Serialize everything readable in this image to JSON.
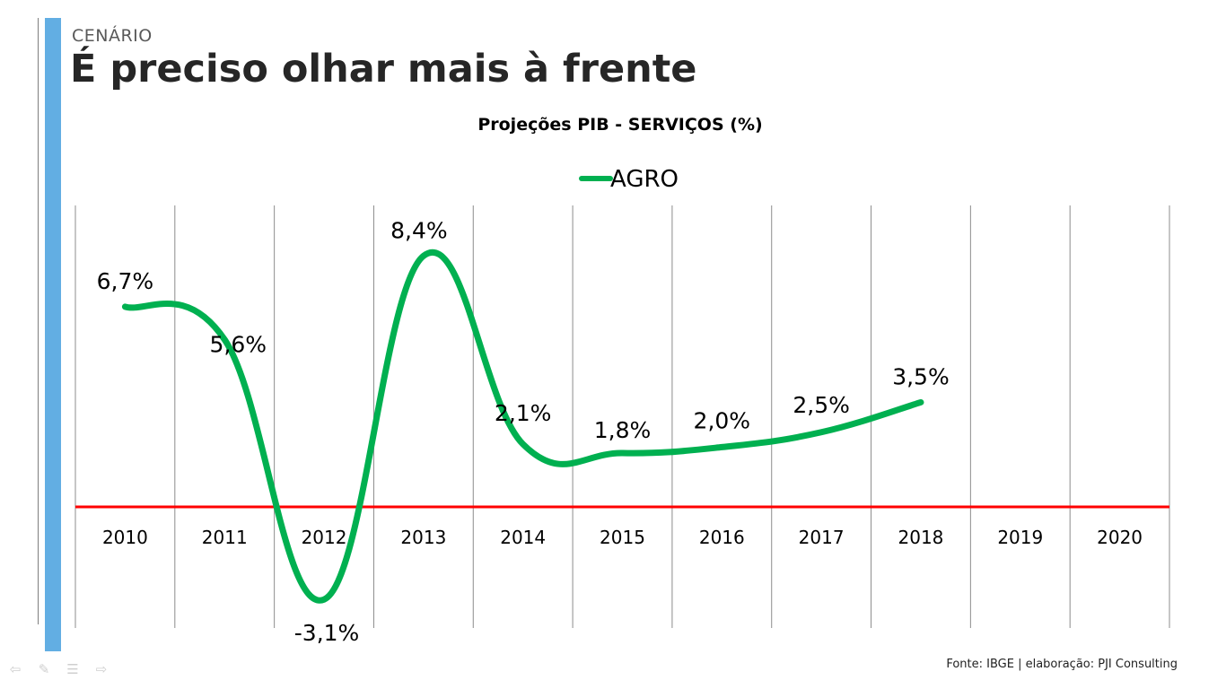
{
  "slide": {
    "section": "CENÁRIO",
    "title": "É preciso olhar mais à frente",
    "source": "Fonte: IBGE  |  elaboração: PJI Consulting"
  },
  "nav": [
    "back-arrow-icon",
    "pen-icon",
    "menu-icon",
    "forward-arrow-icon"
  ],
  "chart_data": {
    "type": "line",
    "title": "Projeções PIB - SERVIÇOS (%)",
    "categories": [
      "2010",
      "2011",
      "2012",
      "2013",
      "2014",
      "2015",
      "2016",
      "2017",
      "2018",
      "2019",
      "2020"
    ],
    "series": [
      {
        "name": "AGRO",
        "color": "#00b050",
        "values": [
          6.7,
          5.6,
          -3.1,
          8.4,
          2.1,
          1.8,
          2.0,
          2.5,
          3.5,
          null,
          null
        ],
        "labels": [
          "6,7%",
          "5,6%",
          "-3,1%",
          "8,4%",
          "2,1%",
          "1,8%",
          "2,0%",
          "2,5%",
          "3,5%",
          "",
          ""
        ]
      }
    ],
    "baseline": {
      "value": 0,
      "color": "#ff0000"
    },
    "legend": "top-center",
    "grid": "vertical"
  }
}
